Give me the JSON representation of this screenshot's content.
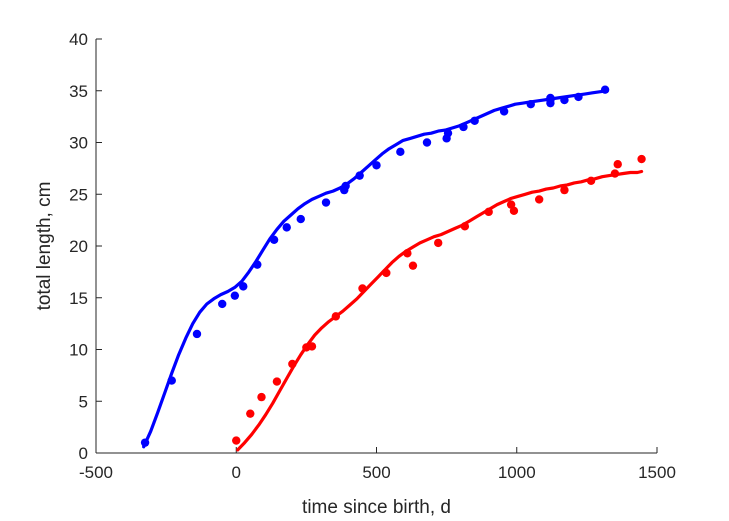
{
  "chart_data": {
    "type": "scatter",
    "title": "",
    "xlabel": "time since birth, d",
    "ylabel": "total length, cm",
    "xlim": [
      -500,
      1500
    ],
    "ylim": [
      0,
      40
    ],
    "xticks": [
      -500,
      0,
      500,
      1000,
      1500
    ],
    "xtick_labels": [
      "-500",
      "0",
      "500",
      "1000",
      "1500"
    ],
    "yticks": [
      0,
      5,
      10,
      15,
      20,
      25,
      30,
      35,
      40
    ],
    "ytick_labels": [
      "0",
      "5",
      "10",
      "15",
      "20",
      "25",
      "30",
      "35",
      "40"
    ],
    "grid": false,
    "legend": "none",
    "series": [
      {
        "color": "#0000ff",
        "points": {
          "x": [
            -325,
            -230,
            -140,
            -50,
            -5,
            25,
            75,
            135,
            180,
            230,
            320,
            385,
            390,
            440,
            500,
            585,
            680,
            750,
            755,
            810,
            850,
            955,
            1050,
            1120,
            1120,
            1120,
            1170,
            1220,
            1315
          ],
          "y": [
            1.0,
            7.0,
            11.5,
            14.4,
            15.2,
            16.1,
            18.2,
            20.6,
            21.8,
            22.6,
            24.2,
            25.4,
            25.8,
            26.8,
            27.8,
            29.1,
            30.0,
            30.4,
            30.9,
            31.5,
            32.1,
            33.0,
            33.7,
            33.8,
            34.1,
            34.3,
            34.1,
            34.4,
            35.1
          ]
        },
        "fit": {
          "x": [
            -330,
            -305,
            -280,
            -255,
            -230,
            -205,
            -180,
            -155,
            -130,
            -105,
            -80,
            -55,
            -30,
            -5,
            20,
            45,
            70,
            95,
            120,
            145,
            170,
            195,
            220,
            245,
            270,
            295,
            320,
            345,
            370,
            395,
            420,
            445,
            470,
            495,
            520,
            545,
            570,
            595,
            620,
            645,
            670,
            695,
            720,
            745,
            770,
            795,
            820,
            845,
            870,
            895,
            920,
            945,
            970,
            995,
            1020,
            1045,
            1070,
            1095,
            1120,
            1145,
            1170,
            1195,
            1220,
            1245,
            1270,
            1295,
            1320
          ],
          "y": [
            0.6,
            2.1,
            3.9,
            5.8,
            7.7,
            9.5,
            11.1,
            12.5,
            13.6,
            14.4,
            14.9,
            15.3,
            15.6,
            16.0,
            16.6,
            17.5,
            18.5,
            19.6,
            20.7,
            21.6,
            22.4,
            23.0,
            23.6,
            24.1,
            24.5,
            24.8,
            25.1,
            25.3,
            25.6,
            26.0,
            26.5,
            27.1,
            27.7,
            28.3,
            28.9,
            29.4,
            29.8,
            30.2,
            30.4,
            30.6,
            30.8,
            30.9,
            31.1,
            31.2,
            31.4,
            31.6,
            31.9,
            32.2,
            32.5,
            32.8,
            33.1,
            33.3,
            33.5,
            33.7,
            33.8,
            33.9,
            34.0,
            34.1,
            34.2,
            34.3,
            34.4,
            34.5,
            34.6,
            34.7,
            34.8,
            34.9,
            35.0
          ]
        }
      },
      {
        "color": "#ff0000",
        "points": {
          "x": [
            0,
            50,
            90,
            145,
            200,
            250,
            270,
            355,
            450,
            535,
            610,
            630,
            720,
            815,
            900,
            980,
            990,
            1080,
            1170,
            1265,
            1350,
            1360,
            1445
          ],
          "y": [
            1.2,
            3.8,
            5.4,
            6.9,
            8.6,
            10.2,
            10.3,
            13.2,
            15.9,
            17.4,
            19.3,
            18.1,
            20.3,
            21.9,
            23.3,
            24.0,
            23.4,
            24.5,
            25.4,
            26.3,
            27.0,
            27.9,
            28.4
          ]
        },
        "fit": {
          "x": [
            5,
            30,
            55,
            80,
            105,
            130,
            155,
            180,
            205,
            230,
            255,
            280,
            305,
            330,
            355,
            380,
            405,
            430,
            455,
            480,
            505,
            530,
            555,
            580,
            605,
            630,
            655,
            680,
            705,
            730,
            755,
            780,
            805,
            830,
            855,
            880,
            905,
            930,
            955,
            980,
            1005,
            1030,
            1055,
            1080,
            1105,
            1130,
            1155,
            1180,
            1205,
            1230,
            1255,
            1280,
            1305,
            1330,
            1355,
            1380,
            1405,
            1430,
            1445
          ],
          "y": [
            0.3,
            1.0,
            1.8,
            2.7,
            3.7,
            4.8,
            6.0,
            7.2,
            8.4,
            9.5,
            10.5,
            11.4,
            12.1,
            12.7,
            13.2,
            13.7,
            14.3,
            14.9,
            15.6,
            16.3,
            17.0,
            17.7,
            18.4,
            19.0,
            19.5,
            19.9,
            20.3,
            20.6,
            20.9,
            21.1,
            21.4,
            21.7,
            22.0,
            22.4,
            22.8,
            23.2,
            23.6,
            24.0,
            24.3,
            24.6,
            24.8,
            25.0,
            25.2,
            25.3,
            25.5,
            25.6,
            25.8,
            25.9,
            26.1,
            26.2,
            26.4,
            26.5,
            26.7,
            26.8,
            26.9,
            27.0,
            27.1,
            27.1,
            27.2
          ]
        }
      }
    ]
  }
}
